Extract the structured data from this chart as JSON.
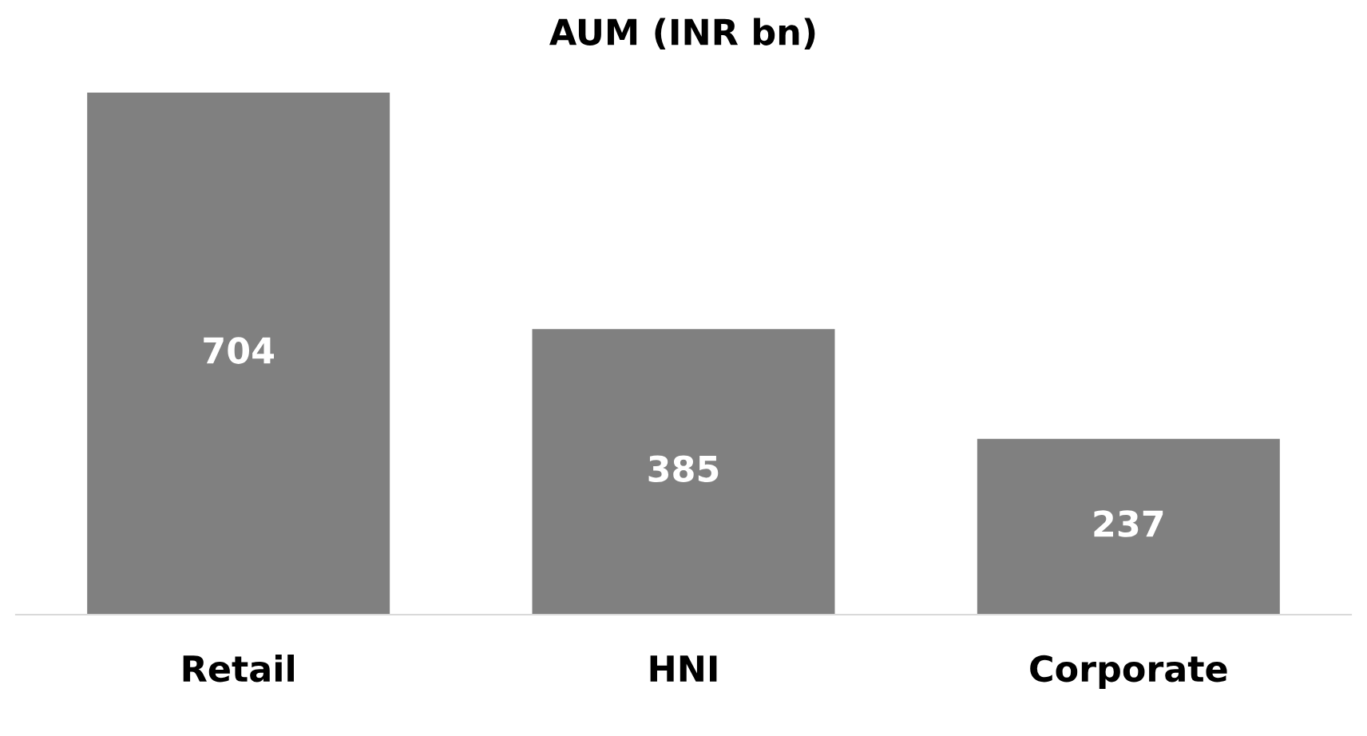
{
  "chart_data": {
    "type": "bar",
    "title": "AUM (INR bn)",
    "categories": [
      "Retail",
      "HNI",
      "Corporate"
    ],
    "values": [
      704,
      385,
      237
    ],
    "color": "#808080",
    "data_labels": true,
    "grid": false,
    "legend": false
  }
}
